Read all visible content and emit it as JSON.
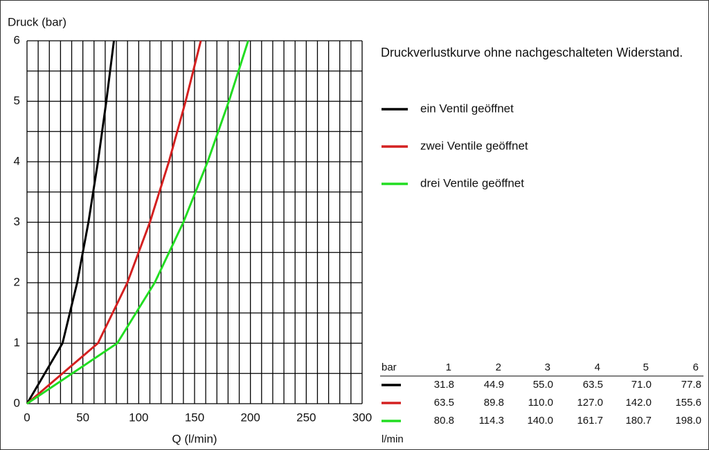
{
  "chart_data": {
    "type": "line",
    "y_axis_label": "Druck (bar)",
    "x_axis_label": "Q (l/min)",
    "legend_title": "Druckverlustkurve ohne nachgeschalteten Widerstand.",
    "xlim": [
      0,
      300
    ],
    "xticks": [
      0,
      50,
      100,
      150,
      200,
      250,
      300
    ],
    "ylim": [
      0,
      6
    ],
    "yticks": [
      0,
      1,
      2,
      3,
      4,
      5,
      6
    ],
    "xgrid": [
      0,
      10,
      20,
      30,
      40,
      50,
      60,
      70,
      80,
      90,
      100,
      110,
      120,
      130,
      140,
      150,
      160,
      170,
      180,
      190,
      200,
      210,
      220,
      230,
      240,
      250,
      260,
      270,
      280,
      290,
      300
    ],
    "ygrid": [
      0,
      0.5,
      1,
      1.5,
      2,
      2.5,
      3,
      3.5,
      4,
      4.5,
      5,
      5.5,
      6
    ],
    "grid": true,
    "values": [
      0,
      1,
      2,
      3,
      4,
      5,
      6
    ],
    "series": [
      {
        "name": "ein Ventil geöffnet",
        "color": "#000000",
        "x": [
          0,
          31.8,
          44.9,
          55.0,
          63.5,
          71.0,
          77.8
        ],
        "x_labels": [
          null,
          "31.8",
          "44.9",
          "55.0",
          "63.5",
          "71.0",
          "77.8"
        ]
      },
      {
        "name": "zwei Ventile geöffnet",
        "color": "#d42020",
        "x": [
          0,
          63.5,
          89.8,
          110.0,
          127.0,
          142.0,
          155.6
        ],
        "x_labels": [
          null,
          "63.5",
          "89.8",
          "110.0",
          "127.0",
          "142.0",
          "155.6"
        ]
      },
      {
        "name": "drei Ventile geöffnet",
        "color": "#22dd22",
        "x": [
          0,
          80.8,
          114.3,
          140.0,
          161.7,
          180.7,
          198.0
        ],
        "x_labels": [
          null,
          "80.8",
          "114.3",
          "140.0",
          "161.7",
          "180.7",
          "198.0"
        ]
      }
    ],
    "table_header": "bar",
    "table_unit": "l/min"
  }
}
